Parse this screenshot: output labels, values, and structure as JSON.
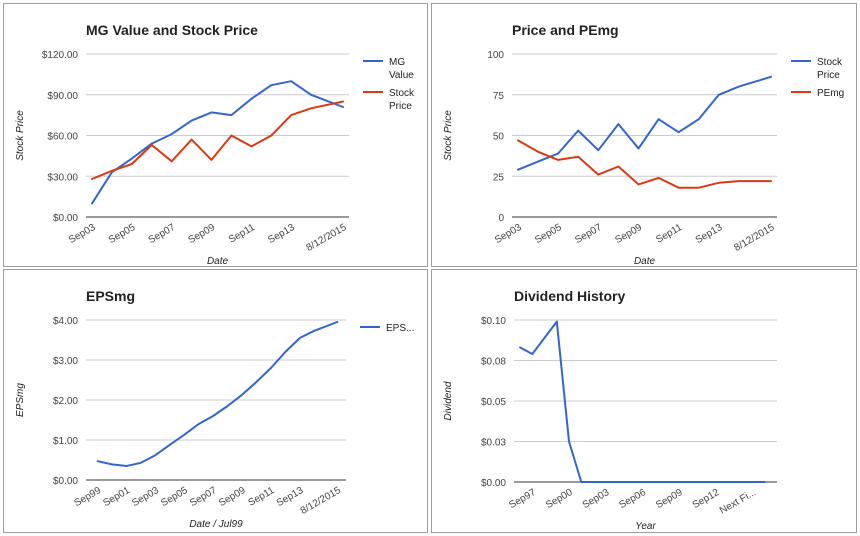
{
  "chart_data": [
    {
      "type": "line",
      "title": "MG Value and Stock Price",
      "xlabel": "Date",
      "ylabel": "Stock Price",
      "x_ticks": [
        "Sep03",
        "Sep05",
        "Sep07",
        "Sep09",
        "Sep11",
        "Sep13",
        "8/12/2015"
      ],
      "y_ticks": [
        "$0.00",
        "$30.00",
        "$60.00",
        "$90.00",
        "$120.00"
      ],
      "ylim": [
        0,
        120
      ],
      "grid": true,
      "legend": "right",
      "series": [
        {
          "name": "MG Value",
          "color": "#3366cc",
          "x": [
            2003,
            2004,
            2005,
            2006,
            2007,
            2008,
            2009,
            2010,
            2011,
            2012,
            2013,
            2014,
            2015.6
          ],
          "y": [
            10,
            33,
            43,
            54,
            61,
            71,
            77,
            75,
            87,
            97,
            100,
            90,
            81
          ]
        },
        {
          "name": "Stock Price",
          "color": "#dc3912",
          "x": [
            2003,
            2004,
            2005,
            2006,
            2007,
            2008,
            2009,
            2010,
            2011,
            2012,
            2013,
            2014,
            2015.6
          ],
          "y": [
            28,
            34,
            39,
            53,
            41,
            57,
            42,
            60,
            52,
            60,
            75,
            80,
            85
          ]
        }
      ]
    },
    {
      "type": "line",
      "title": "Price and PEmg",
      "xlabel": "Date",
      "ylabel": "Stock Price",
      "x_ticks": [
        "Sep03",
        "Sep05",
        "Sep07",
        "Sep09",
        "Sep11",
        "Sep13",
        "8/12/2015"
      ],
      "y_ticks": [
        "0",
        "25",
        "50",
        "75",
        "100"
      ],
      "ylim": [
        0,
        100
      ],
      "grid": true,
      "legend": "right",
      "series": [
        {
          "name": "Stock Price",
          "color": "#3366cc",
          "x": [
            2003,
            2004,
            2005,
            2006,
            2007,
            2008,
            2009,
            2010,
            2011,
            2012,
            2013,
            2014,
            2015.6
          ],
          "y": [
            29,
            34,
            39,
            53,
            41,
            57,
            42,
            60,
            52,
            60,
            75,
            80,
            86
          ]
        },
        {
          "name": "PEmg",
          "color": "#dc3912",
          "x": [
            2003,
            2004,
            2005,
            2006,
            2007,
            2008,
            2009,
            2010,
            2011,
            2012,
            2013,
            2014,
            2015.6
          ],
          "y": [
            47,
            40,
            35,
            37,
            26,
            31,
            20,
            24,
            18,
            18,
            21,
            22,
            22
          ]
        }
      ]
    },
    {
      "type": "line",
      "title": "EPSmg",
      "xlabel": "Date / Jul99",
      "ylabel": "EPSmg",
      "x_ticks": [
        "Sep99",
        "Sep01",
        "Sep03",
        "Sep05",
        "Sep07",
        "Sep09",
        "Sep11",
        "Sep13",
        "8/12/2015"
      ],
      "y_ticks": [
        "$0.00",
        "$1.00",
        "$2.00",
        "$3.00",
        "$4.00"
      ],
      "ylim": [
        0,
        4
      ],
      "grid": true,
      "legend": "right",
      "series": [
        {
          "name": "EPS...",
          "color": "#3366cc",
          "x": [
            1999,
            2000,
            2001,
            2002,
            2003,
            2004,
            2005,
            2006,
            2007,
            2008,
            2009,
            2010,
            2011,
            2012,
            2013,
            2014,
            2015.6
          ],
          "y": [
            0.47,
            0.39,
            0.35,
            0.43,
            0.62,
            0.88,
            1.13,
            1.4,
            1.6,
            1.85,
            2.13,
            2.45,
            2.8,
            3.2,
            3.55,
            3.73,
            3.95
          ]
        }
      ]
    },
    {
      "type": "line",
      "title": "Dividend History",
      "xlabel": "Year",
      "ylabel": "Dividend",
      "x_ticks": [
        "Sep97",
        "Sep00",
        "Sep03",
        "Sep06",
        "Sep09",
        "Sep12",
        "Next Fi..."
      ],
      "y_ticks": [
        "$0.00",
        "$0.03",
        "$0.05",
        "$0.08",
        "$0.10"
      ],
      "ylim": [
        0,
        0.1
      ],
      "grid": true,
      "legend": "none",
      "series": [
        {
          "name": "Dividend",
          "color": "#3366cc",
          "x": [
            1996,
            1997,
            1999,
            2000,
            2001,
            2003,
            2006,
            2009,
            2012,
            2014,
            2016
          ],
          "y": [
            0.083,
            0.079,
            0.099,
            0.025,
            0,
            0,
            0,
            0,
            0,
            0,
            0
          ]
        }
      ]
    }
  ]
}
